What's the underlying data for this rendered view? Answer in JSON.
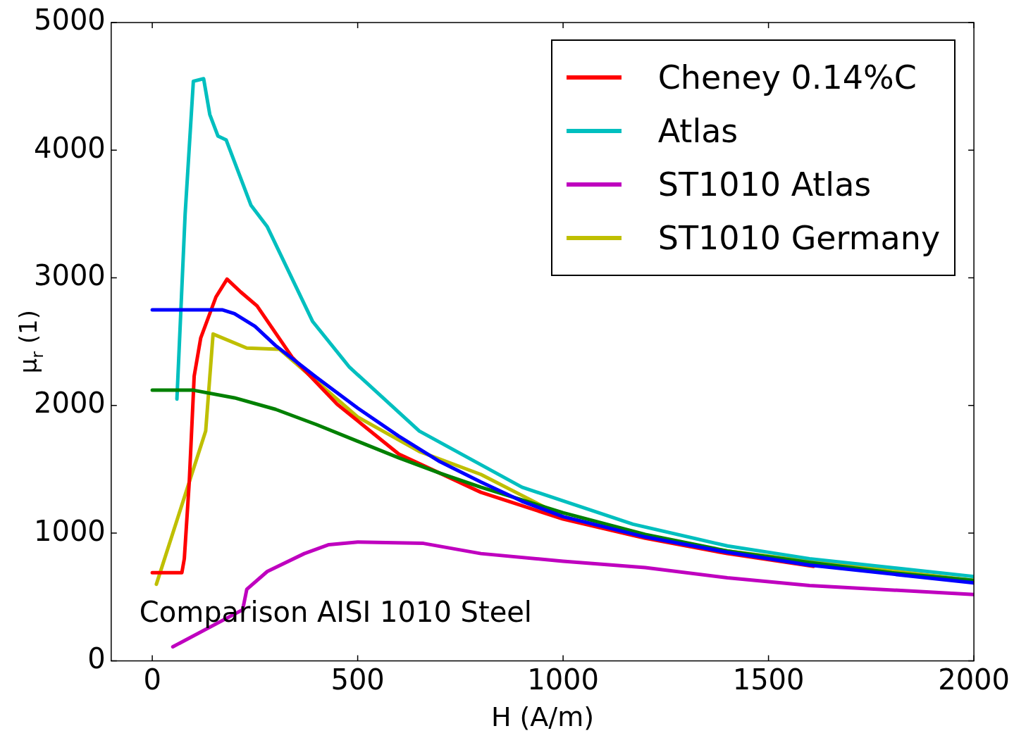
{
  "chart_data": {
    "type": "line",
    "xlabel": "H (A/m)",
    "ylabel": "μ$_{r}$ (1)",
    "annotations": [
      "Comparison AISI 1010 Steel"
    ],
    "xlim": [
      -100,
      2000
    ],
    "xticks": [
      0,
      500,
      1000,
      1500,
      2000
    ],
    "ylim": [
      0,
      5000
    ],
    "yticks": [
      0,
      1000,
      2000,
      3000,
      4000,
      5000
    ],
    "grid": false,
    "legend": "top right",
    "marker": "none",
    "line_style": "solid",
    "series": [
      {
        "color": "#0000ff",
        "x": [
          0,
          170,
          200,
          250,
          300,
          400,
          500,
          600,
          700,
          800,
          900,
          1000,
          1200,
          1400,
          1600,
          1800,
          2000
        ],
        "values": [
          2750,
          2750,
          2720,
          2620,
          2470,
          2220,
          1980,
          1760,
          1560,
          1400,
          1250,
          1130,
          970,
          850,
          750,
          680,
          610
        ]
      },
      {
        "color": "#008000",
        "x": [
          0,
          100,
          200,
          300,
          400,
          500,
          600,
          700,
          800,
          900,
          1000,
          1200,
          1400,
          1600,
          1800,
          2000
        ],
        "values": [
          2120,
          2120,
          2060,
          1970,
          1850,
          1720,
          1590,
          1470,
          1360,
          1260,
          1160,
          990,
          860,
          770,
          690,
          630
        ]
      },
      {
        "name": "Cheney 0.14%C",
        "color": "#ff0000",
        "x": [
          0,
          72,
          78,
          90,
          102,
          118,
          155,
          182,
          215,
          255,
          340,
          450,
          600,
          800,
          1000,
          1200,
          1400,
          1610
        ],
        "values": [
          690,
          690,
          800,
          1400,
          2230,
          2530,
          2850,
          2990,
          2890,
          2780,
          2380,
          2010,
          1620,
          1320,
          1110,
          960,
          840,
          740
        ]
      },
      {
        "name": "Atlas",
        "color": "#00bfbf",
        "x": [
          60,
          80,
          100,
          125,
          140,
          160,
          180,
          240,
          280,
          390,
          480,
          650,
          900,
          1170,
          1400,
          1600,
          2000
        ],
        "values": [
          2050,
          3500,
          4540,
          4560,
          4280,
          4110,
          4080,
          3570,
          3400,
          2660,
          2300,
          1800,
          1360,
          1070,
          900,
          800,
          660
        ]
      },
      {
        "name": "ST1010 Atlas",
        "color": "#bf00bf",
        "x": [
          50,
          220,
          230,
          280,
          370,
          430,
          500,
          660,
          800,
          1000,
          1200,
          1400,
          1600,
          2000
        ],
        "values": [
          110,
          400,
          560,
          700,
          840,
          910,
          930,
          920,
          840,
          780,
          730,
          650,
          590,
          520
        ]
      },
      {
        "name": "ST1010 Germany",
        "color": "#bfbf00",
        "x": [
          10,
          130,
          148,
          230,
          310,
          500,
          650,
          800,
          1000,
          1200,
          1400,
          1600,
          2000
        ],
        "values": [
          600,
          1800,
          2560,
          2450,
          2440,
          1910,
          1640,
          1460,
          1130,
          970,
          860,
          780,
          630
        ]
      }
    ]
  }
}
